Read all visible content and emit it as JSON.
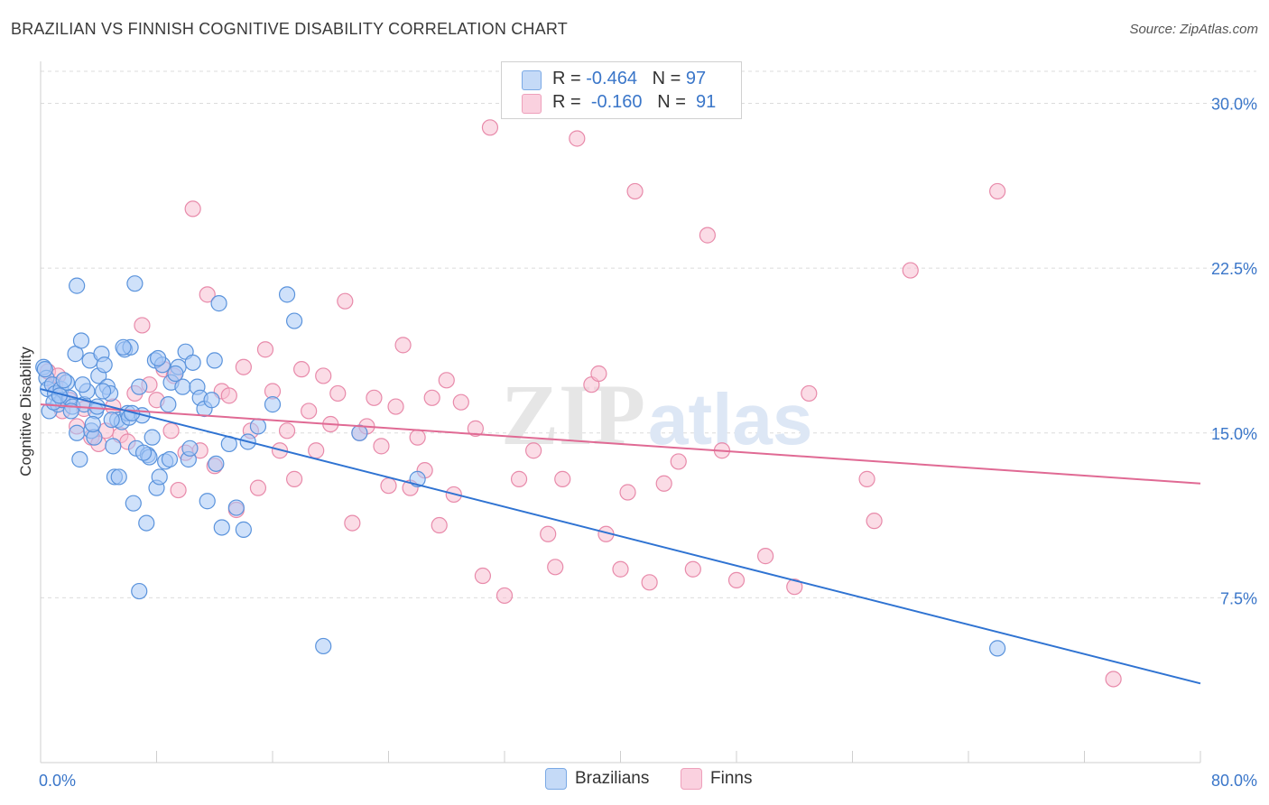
{
  "title": "BRAZILIAN VS FINNISH COGNITIVE DISABILITY CORRELATION CHART",
  "source": "Source: ZipAtlas.com",
  "watermark": {
    "zip": "ZIP",
    "atlas": "atlas"
  },
  "legend": {
    "rows": [
      {
        "r_label": "R =",
        "r_value": "-0.464",
        "n_label": "N =",
        "n_value": "97"
      },
      {
        "r_label": "R =",
        "r_value": "-0.160",
        "n_label": "N =",
        "n_value": "91"
      }
    ]
  },
  "bottom_legend": {
    "brazilians": "Brazilians",
    "finns": "Finns"
  },
  "colors": {
    "blue_fill": "#a8c8f5",
    "blue_stroke": "#5a93dc",
    "blue_line": "#2f73d2",
    "pink_fill": "#f7c0d2",
    "pink_stroke": "#e88aaa",
    "pink_line": "#e06a94",
    "tick_color": "#3a76c9",
    "grid": "#dcdcdc"
  },
  "chart_data": {
    "type": "scatter",
    "title": "BRAZILIAN VS FINNISH COGNITIVE DISABILITY CORRELATION CHART",
    "xlabel": "",
    "ylabel": "Cognitive Disability",
    "xlim": [
      0,
      80
    ],
    "ylim": [
      0,
      31.5
    ],
    "x_tick_labels": [
      "0.0%",
      "80.0%"
    ],
    "y_ticks": [
      7.5,
      15.0,
      22.5,
      30.0
    ],
    "y_tick_labels": [
      "7.5%",
      "15.0%",
      "22.5%",
      "30.0%"
    ],
    "grid": "horizontal dashed",
    "legend_position": "top-center",
    "series": [
      {
        "name": "Brazilians",
        "r": -0.464,
        "n": 97,
        "trend": {
          "x0": 0,
          "y0": 17.0,
          "x1": 80,
          "y1": 3.6
        },
        "points": [
          [
            0.2,
            18.0
          ],
          [
            0.4,
            17.5
          ],
          [
            0.5,
            17.0
          ],
          [
            0.6,
            16.0
          ],
          [
            0.8,
            17.2
          ],
          [
            1.0,
            16.8
          ],
          [
            1.2,
            16.3
          ],
          [
            1.4,
            17.0
          ],
          [
            1.5,
            16.5
          ],
          [
            1.8,
            17.3
          ],
          [
            2.0,
            16.6
          ],
          [
            2.2,
            16.2
          ],
          [
            2.4,
            18.6
          ],
          [
            2.5,
            15.0
          ],
          [
            2.7,
            13.8
          ],
          [
            2.8,
            19.2
          ],
          [
            3.0,
            16.3
          ],
          [
            3.2,
            16.9
          ],
          [
            3.4,
            18.3
          ],
          [
            3.5,
            15.1
          ],
          [
            3.7,
            14.8
          ],
          [
            3.8,
            16.0
          ],
          [
            4.0,
            17.6
          ],
          [
            4.2,
            18.6
          ],
          [
            4.4,
            18.1
          ],
          [
            4.6,
            17.1
          ],
          [
            4.8,
            16.8
          ],
          [
            5.0,
            14.4
          ],
          [
            5.1,
            13.0
          ],
          [
            5.3,
            15.6
          ],
          [
            5.6,
            15.5
          ],
          [
            5.8,
            18.8
          ],
          [
            6.0,
            15.9
          ],
          [
            6.1,
            15.7
          ],
          [
            6.2,
            18.9
          ],
          [
            6.4,
            11.8
          ],
          [
            6.6,
            14.3
          ],
          [
            6.8,
            17.1
          ],
          [
            7.0,
            15.8
          ],
          [
            7.3,
            10.9
          ],
          [
            7.4,
            14.0
          ],
          [
            7.5,
            13.9
          ],
          [
            7.7,
            14.8
          ],
          [
            7.9,
            18.3
          ],
          [
            8.0,
            12.5
          ],
          [
            8.2,
            13.0
          ],
          [
            8.4,
            18.1
          ],
          [
            8.6,
            13.7
          ],
          [
            8.8,
            16.3
          ],
          [
            9.0,
            17.3
          ],
          [
            9.5,
            18.0
          ],
          [
            9.8,
            17.1
          ],
          [
            10.0,
            18.7
          ],
          [
            10.2,
            13.8
          ],
          [
            10.5,
            18.2
          ],
          [
            10.8,
            17.1
          ],
          [
            11.0,
            16.6
          ],
          [
            11.3,
            16.1
          ],
          [
            11.5,
            11.9
          ],
          [
            12.0,
            18.3
          ],
          [
            12.5,
            10.7
          ],
          [
            13.0,
            14.5
          ],
          [
            13.5,
            11.6
          ],
          [
            14.0,
            10.6
          ],
          [
            14.3,
            14.6
          ],
          [
            15.0,
            15.3
          ],
          [
            16.0,
            16.3
          ],
          [
            17.0,
            21.3
          ],
          [
            17.5,
            20.1
          ],
          [
            19.5,
            5.3
          ],
          [
            22.0,
            15.0
          ],
          [
            26.0,
            12.9
          ],
          [
            6.5,
            21.8
          ],
          [
            2.5,
            21.7
          ],
          [
            12.3,
            20.9
          ],
          [
            6.8,
            7.8
          ],
          [
            66.0,
            5.2
          ],
          [
            3.9,
            16.2
          ],
          [
            1.6,
            17.4
          ],
          [
            2.1,
            16.0
          ],
          [
            0.9,
            16.4
          ],
          [
            4.3,
            16.9
          ],
          [
            5.4,
            13.0
          ],
          [
            7.1,
            14.1
          ],
          [
            8.9,
            13.8
          ],
          [
            10.3,
            14.3
          ],
          [
            12.1,
            13.6
          ],
          [
            3.6,
            15.4
          ],
          [
            4.9,
            15.6
          ],
          [
            6.3,
            15.9
          ],
          [
            1.3,
            16.7
          ],
          [
            2.9,
            17.2
          ],
          [
            0.3,
            17.9
          ],
          [
            5.7,
            18.9
          ],
          [
            8.1,
            18.4
          ],
          [
            9.3,
            17.7
          ],
          [
            11.8,
            16.5
          ]
        ]
      },
      {
        "name": "Finns",
        "r": -0.16,
        "n": 91,
        "trend": {
          "x0": 0,
          "y0": 16.3,
          "x1": 80,
          "y1": 12.7
        },
        "points": [
          [
            0.5,
            17.8
          ],
          [
            1.0,
            17.2
          ],
          [
            1.5,
            16.0
          ],
          [
            2.0,
            16.5
          ],
          [
            2.5,
            15.3
          ],
          [
            3.0,
            16.1
          ],
          [
            3.5,
            14.8
          ],
          [
            4.0,
            14.5
          ],
          [
            4.5,
            15.1
          ],
          [
            5.0,
            16.2
          ],
          [
            5.5,
            14.9
          ],
          [
            6.0,
            14.6
          ],
          [
            6.5,
            16.8
          ],
          [
            7.0,
            19.9
          ],
          [
            7.5,
            17.2
          ],
          [
            8.0,
            16.5
          ],
          [
            8.5,
            17.9
          ],
          [
            9.0,
            15.1
          ],
          [
            9.5,
            12.4
          ],
          [
            10.0,
            14.1
          ],
          [
            10.5,
            25.2
          ],
          [
            11.0,
            14.2
          ],
          [
            11.5,
            21.3
          ],
          [
            12.0,
            13.5
          ],
          [
            12.5,
            16.9
          ],
          [
            13.0,
            16.7
          ],
          [
            13.5,
            11.5
          ],
          [
            14.0,
            18.0
          ],
          [
            14.5,
            15.1
          ],
          [
            15.0,
            12.5
          ],
          [
            15.5,
            18.8
          ],
          [
            16.0,
            16.9
          ],
          [
            16.5,
            14.2
          ],
          [
            17.0,
            15.1
          ],
          [
            17.5,
            12.9
          ],
          [
            18.0,
            17.9
          ],
          [
            18.5,
            16.0
          ],
          [
            19.0,
            14.2
          ],
          [
            19.5,
            17.6
          ],
          [
            20.0,
            15.4
          ],
          [
            20.5,
            16.8
          ],
          [
            21.0,
            21.0
          ],
          [
            21.5,
            10.9
          ],
          [
            22.0,
            15.0
          ],
          [
            22.5,
            15.3
          ],
          [
            23.0,
            16.6
          ],
          [
            23.5,
            14.4
          ],
          [
            24.0,
            12.6
          ],
          [
            24.5,
            16.2
          ],
          [
            25.0,
            19.0
          ],
          [
            25.5,
            12.5
          ],
          [
            26.0,
            14.8
          ],
          [
            26.5,
            13.3
          ],
          [
            27.0,
            16.6
          ],
          [
            27.5,
            10.8
          ],
          [
            28.0,
            17.4
          ],
          [
            28.5,
            12.2
          ],
          [
            29.0,
            16.4
          ],
          [
            30.0,
            15.2
          ],
          [
            30.5,
            8.5
          ],
          [
            31.0,
            28.9
          ],
          [
            32.0,
            7.6
          ],
          [
            33.0,
            12.9
          ],
          [
            34.0,
            14.2
          ],
          [
            35.0,
            10.4
          ],
          [
            35.5,
            8.9
          ],
          [
            36.0,
            12.9
          ],
          [
            37.0,
            28.4
          ],
          [
            38.0,
            17.2
          ],
          [
            38.5,
            17.7
          ],
          [
            39.0,
            10.4
          ],
          [
            40.0,
            8.8
          ],
          [
            40.5,
            12.3
          ],
          [
            41.0,
            26.0
          ],
          [
            42.0,
            8.2
          ],
          [
            43.0,
            12.7
          ],
          [
            44.0,
            13.7
          ],
          [
            45.0,
            8.8
          ],
          [
            46.0,
            24.0
          ],
          [
            47.0,
            14.2
          ],
          [
            48.0,
            8.3
          ],
          [
            50.0,
            9.4
          ],
          [
            52.0,
            8.0
          ],
          [
            53.0,
            16.8
          ],
          [
            57.0,
            12.9
          ],
          [
            57.5,
            11.0
          ],
          [
            60.0,
            22.4
          ],
          [
            66.0,
            26.0
          ],
          [
            74.0,
            3.8
          ],
          [
            1.2,
            17.6
          ],
          [
            9.2,
            17.6
          ]
        ]
      }
    ]
  }
}
